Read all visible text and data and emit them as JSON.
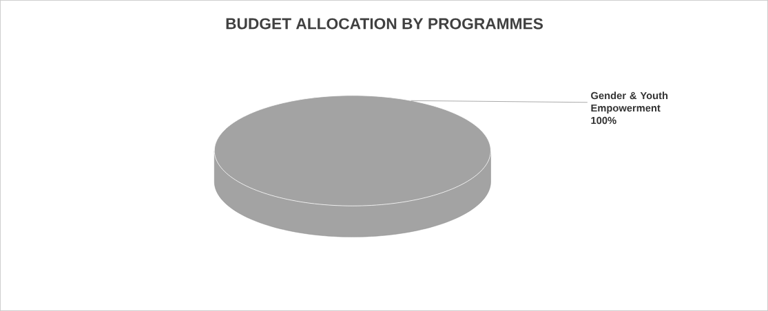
{
  "chart_data": {
    "type": "pie",
    "title": "BUDGET ALLOCATION BY PROGRAMMES",
    "categories": [
      "Gender & Youth Empowerment"
    ],
    "values": [
      100
    ],
    "colors": [
      "#a3a3a3"
    ],
    "value_labels": [
      "100%"
    ]
  }
}
